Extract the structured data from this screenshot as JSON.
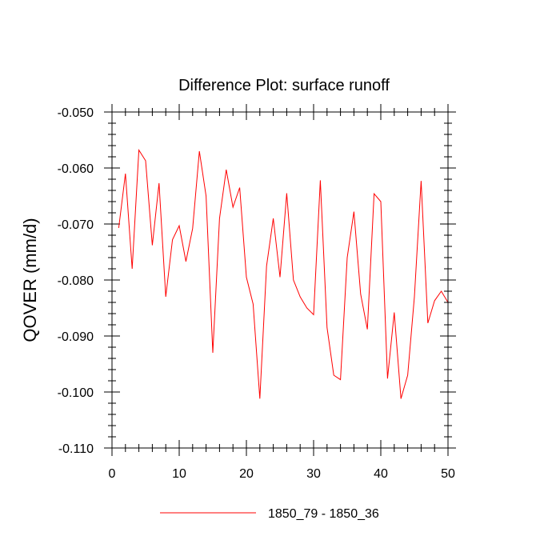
{
  "chart_data": {
    "type": "line",
    "title": "Difference Plot: surface runoff",
    "xlabel": "",
    "ylabel": "QOVER  (mm/d)",
    "xlim": [
      0,
      50
    ],
    "ylim": [
      -0.11,
      -0.05
    ],
    "x_ticks": [
      "0",
      "10",
      "20",
      "30",
      "40",
      "50"
    ],
    "y_ticks": [
      "-0.050",
      "-0.060",
      "-0.070",
      "-0.080",
      "-0.090",
      "-0.100",
      "-0.110"
    ],
    "grid": false,
    "legend_position": "bottom",
    "series": [
      {
        "name": "1850_79 - 1850_36",
        "color": "#ff0000",
        "x": [
          1,
          2,
          3,
          4,
          5,
          6,
          7,
          8,
          9,
          10,
          11,
          12,
          13,
          14,
          15,
          16,
          17,
          18,
          19,
          20,
          21,
          22,
          23,
          24,
          25,
          26,
          27,
          28,
          29,
          30,
          31,
          32,
          33,
          34,
          35,
          36,
          37,
          38,
          39,
          40,
          41,
          42,
          43,
          44,
          45,
          46,
          47,
          48,
          49,
          50
        ],
        "values": [
          -0.0707,
          -0.061,
          -0.078,
          -0.0568,
          -0.0587,
          -0.0738,
          -0.0627,
          -0.083,
          -0.0728,
          -0.0703,
          -0.0767,
          -0.0708,
          -0.057,
          -0.065,
          -0.093,
          -0.069,
          -0.0603,
          -0.067,
          -0.0635,
          -0.0795,
          -0.0843,
          -0.1012,
          -0.0775,
          -0.069,
          -0.0795,
          -0.0645,
          -0.08,
          -0.083,
          -0.085,
          -0.0862,
          -0.0622,
          -0.0885,
          -0.097,
          -0.0978,
          -0.076,
          -0.0678,
          -0.0825,
          -0.0888,
          -0.0646,
          -0.066,
          -0.0976,
          -0.0858,
          -0.1012,
          -0.097,
          -0.083,
          -0.0623,
          -0.0877,
          -0.0837,
          -0.082,
          -0.084
        ]
      }
    ]
  }
}
